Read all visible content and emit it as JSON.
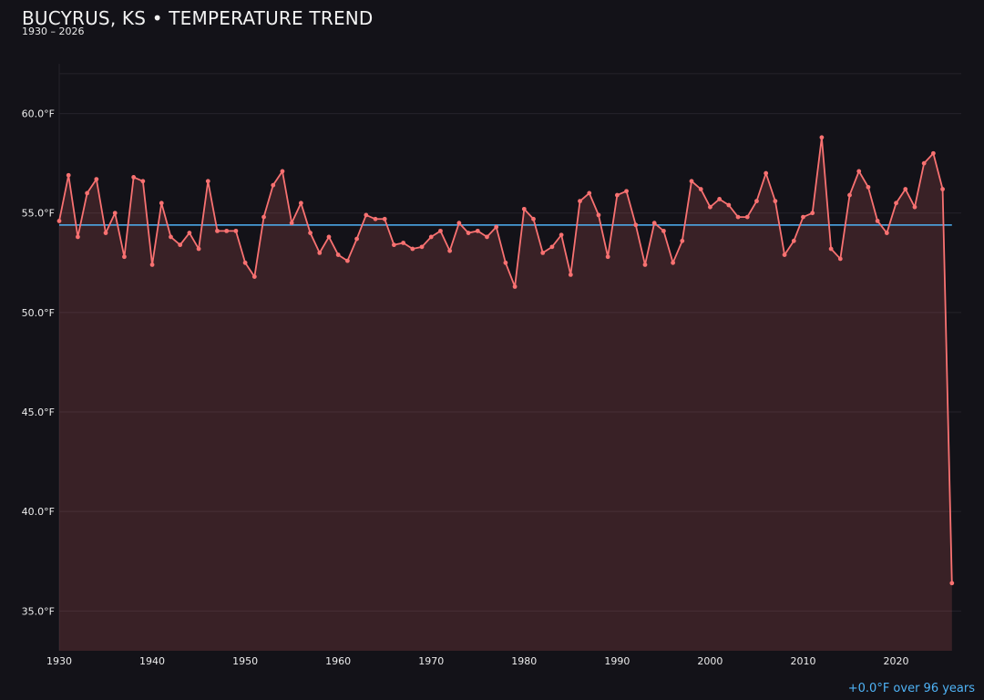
{
  "chart_data": {
    "type": "line",
    "title": "BUCYRUS, KS • TEMPERATURE TREND",
    "subtitle": "1930 – 2026",
    "xlabel": "",
    "ylabel": "",
    "xlim": [
      1930,
      2027
    ],
    "ylim": [
      33,
      62.5
    ],
    "x_ticks": [
      1930,
      1940,
      1950,
      1960,
      1970,
      1980,
      1990,
      2000,
      2010,
      2020
    ],
    "x_tick_labels": [
      "1930",
      "1940",
      "1950",
      "1960",
      "1970",
      "1980",
      "1990",
      "2000",
      "2010",
      "2020"
    ],
    "y_ticks": [
      35,
      40,
      45,
      50,
      55,
      60
    ],
    "y_tick_labels": [
      "35.0°F",
      "40.0°F",
      "45.0°F",
      "50.0°F",
      "55.0°F",
      "60.0°F"
    ],
    "grid": true,
    "series": [
      {
        "type": "line-area",
        "color": "#f87171",
        "x": [
          1930,
          1931,
          1932,
          1933,
          1934,
          1935,
          1936,
          1937,
          1938,
          1939,
          1940,
          1941,
          1942,
          1943,
          1944,
          1945,
          1946,
          1947,
          1948,
          1949,
          1950,
          1951,
          1952,
          1953,
          1954,
          1955,
          1956,
          1957,
          1958,
          1959,
          1960,
          1961,
          1962,
          1963,
          1964,
          1965,
          1966,
          1967,
          1968,
          1969,
          1970,
          1971,
          1972,
          1973,
          1974,
          1975,
          1976,
          1977,
          1978,
          1979,
          1980,
          1981,
          1982,
          1983,
          1984,
          1985,
          1986,
          1987,
          1988,
          1989,
          1990,
          1991,
          1992,
          1993,
          1994,
          1995,
          1996,
          1997,
          1998,
          1999,
          2000,
          2001,
          2002,
          2003,
          2004,
          2005,
          2006,
          2007,
          2008,
          2009,
          2010,
          2011,
          2012,
          2013,
          2014,
          2015,
          2016,
          2017,
          2018,
          2019,
          2020,
          2021,
          2022,
          2023,
          2024,
          2025,
          2026
        ],
        "values": [
          54.6,
          56.9,
          53.8,
          56.0,
          56.7,
          54.0,
          55.0,
          52.8,
          56.8,
          56.6,
          52.4,
          55.5,
          53.8,
          53.4,
          54.0,
          53.2,
          56.6,
          54.1,
          54.1,
          54.1,
          52.5,
          51.8,
          54.8,
          56.4,
          57.1,
          54.5,
          55.5,
          54.0,
          53.0,
          53.8,
          52.9,
          52.6,
          53.7,
          54.9,
          54.7,
          54.7,
          53.4,
          53.5,
          53.2,
          53.3,
          53.8,
          54.1,
          53.1,
          54.5,
          54.0,
          54.1,
          53.8,
          54.3,
          52.5,
          51.3,
          55.2,
          54.7,
          53.0,
          53.3,
          53.9,
          51.9,
          55.6,
          56.0,
          54.9,
          52.8,
          55.9,
          56.1,
          54.4,
          52.4,
          54.5,
          54.1,
          52.5,
          53.6,
          56.6,
          56.2,
          55.3,
          55.7,
          55.4,
          54.8,
          54.8,
          55.6,
          57.0,
          55.6,
          52.9,
          53.6,
          54.8,
          55.0,
          58.8,
          53.2,
          52.7,
          55.9,
          57.1,
          56.3,
          54.6,
          54.0,
          55.5,
          56.2,
          55.3,
          57.5,
          58.0,
          56.2,
          36.4
        ]
      },
      {
        "type": "trend-line",
        "color": "#4fb3f6",
        "x": [
          1930,
          2026
        ],
        "values": [
          54.4,
          54.4
        ]
      }
    ],
    "annotations": [
      "+0.0°F over 96 years"
    ],
    "colors": {
      "background": "#131218",
      "line": "#f87171",
      "area_fill": "#f87171",
      "trend": "#4fb3f6",
      "grid": "#24222a"
    }
  }
}
